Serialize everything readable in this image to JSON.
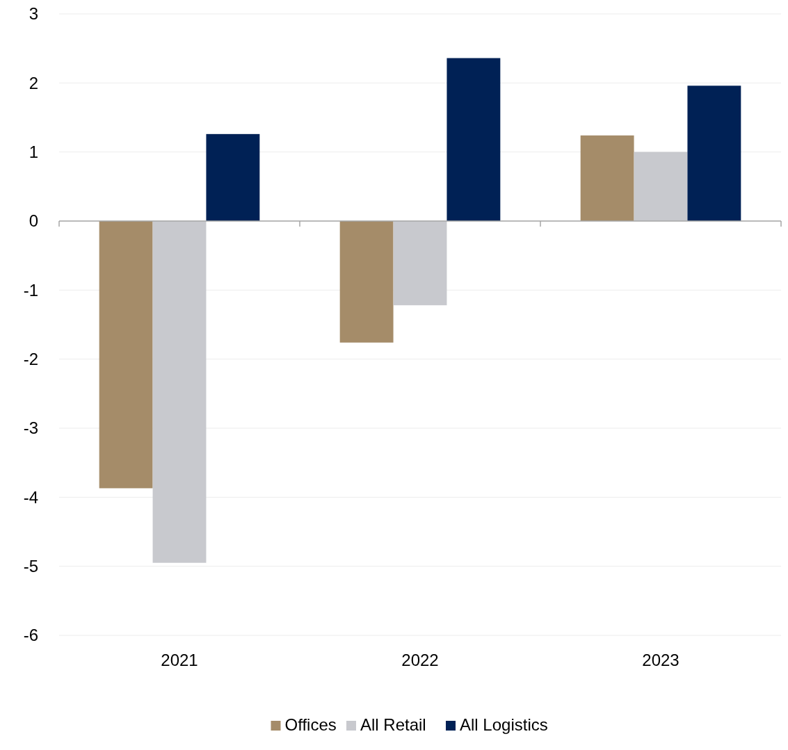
{
  "chart_data": {
    "type": "bar",
    "categories": [
      "2021",
      "2022",
      "2023"
    ],
    "series": [
      {
        "name": "Offices",
        "color": "#a58c69",
        "values": [
          -3.87,
          -1.76,
          1.24
        ]
      },
      {
        "name": "All Retail",
        "color": "#c8c9ce",
        "values": [
          -4.95,
          -1.22,
          1.0
        ]
      },
      {
        "name": "All Logistics",
        "color": "#002155",
        "values": [
          1.26,
          2.36,
          1.96
        ]
      }
    ],
    "ylim": [
      -6,
      3
    ],
    "yticks": [
      -6,
      -5,
      -4,
      -3,
      -2,
      -1,
      0,
      1,
      2,
      3
    ],
    "grid": "y",
    "legend": "bottom"
  }
}
